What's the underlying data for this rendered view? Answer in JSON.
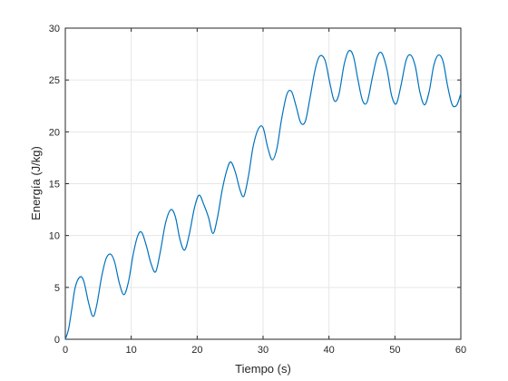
{
  "chart_data": {
    "type": "line",
    "xlabel": "Tiempo (s)",
    "ylabel": "Energía (J/kg)",
    "xlim": [
      0,
      60
    ],
    "ylim": [
      0,
      30
    ],
    "xticks": [
      0,
      10,
      20,
      30,
      40,
      50,
      60
    ],
    "yticks": [
      0,
      5,
      10,
      15,
      20,
      25,
      30
    ],
    "grid": true,
    "series": [
      {
        "color": "#0072BD",
        "points": [
          [
            0,
            0
          ],
          [
            0.5,
            1.0
          ],
          [
            1.0,
            3.0
          ],
          [
            1.5,
            5.0
          ],
          [
            2.2,
            6.0
          ],
          [
            2.8,
            5.6
          ],
          [
            3.5,
            3.6
          ],
          [
            4.2,
            2.2
          ],
          [
            4.8,
            3.4
          ],
          [
            5.5,
            6.0
          ],
          [
            6.2,
            7.8
          ],
          [
            6.9,
            8.2
          ],
          [
            7.5,
            7.4
          ],
          [
            8.2,
            5.4
          ],
          [
            8.9,
            4.3
          ],
          [
            9.6,
            5.6
          ],
          [
            10.3,
            8.2
          ],
          [
            11.0,
            10.0
          ],
          [
            11.6,
            10.3
          ],
          [
            12.3,
            9.0
          ],
          [
            13.0,
            7.3
          ],
          [
            13.7,
            6.5
          ],
          [
            14.4,
            8.4
          ],
          [
            15.2,
            11.2
          ],
          [
            16.0,
            12.5
          ],
          [
            16.7,
            11.8
          ],
          [
            17.4,
            9.6
          ],
          [
            18.1,
            8.6
          ],
          [
            18.8,
            10.1
          ],
          [
            19.6,
            12.7
          ],
          [
            20.3,
            13.9
          ],
          [
            21.0,
            13.0
          ],
          [
            21.7,
            11.8
          ],
          [
            22.4,
            10.2
          ],
          [
            23.1,
            11.8
          ],
          [
            23.8,
            14.4
          ],
          [
            24.5,
            16.3
          ],
          [
            25.1,
            17.1
          ],
          [
            25.8,
            16.1
          ],
          [
            26.5,
            14.4
          ],
          [
            27.1,
            13.8
          ],
          [
            27.8,
            15.8
          ],
          [
            28.5,
            18.6
          ],
          [
            29.3,
            20.3
          ],
          [
            30.0,
            20.4
          ],
          [
            30.7,
            18.5
          ],
          [
            31.4,
            17.3
          ],
          [
            32.1,
            18.4
          ],
          [
            32.8,
            21.2
          ],
          [
            33.6,
            23.6
          ],
          [
            34.3,
            23.9
          ],
          [
            35.0,
            22.5
          ],
          [
            35.7,
            20.9
          ],
          [
            36.4,
            21.0
          ],
          [
            37.1,
            23.2
          ],
          [
            37.9,
            26.0
          ],
          [
            38.6,
            27.3
          ],
          [
            39.4,
            26.9
          ],
          [
            40.1,
            24.8
          ],
          [
            40.8,
            23.0
          ],
          [
            41.5,
            23.6
          ],
          [
            42.3,
            26.5
          ],
          [
            43.0,
            27.8
          ],
          [
            43.7,
            27.3
          ],
          [
            44.4,
            25.0
          ],
          [
            45.1,
            23.0
          ],
          [
            45.8,
            22.9
          ],
          [
            46.6,
            25.3
          ],
          [
            47.3,
            27.2
          ],
          [
            48.0,
            27.6
          ],
          [
            48.8,
            26.0
          ],
          [
            49.5,
            23.5
          ],
          [
            50.2,
            22.7
          ],
          [
            50.9,
            24.4
          ],
          [
            51.7,
            26.9
          ],
          [
            52.4,
            27.4
          ],
          [
            53.1,
            26.3
          ],
          [
            53.8,
            23.8
          ],
          [
            54.5,
            22.6
          ],
          [
            55.2,
            23.9
          ],
          [
            55.9,
            26.4
          ],
          [
            56.6,
            27.4
          ],
          [
            57.3,
            26.8
          ],
          [
            58.0,
            24.4
          ],
          [
            58.7,
            22.6
          ],
          [
            59.4,
            22.6
          ],
          [
            60.0,
            23.7
          ]
        ]
      }
    ]
  }
}
